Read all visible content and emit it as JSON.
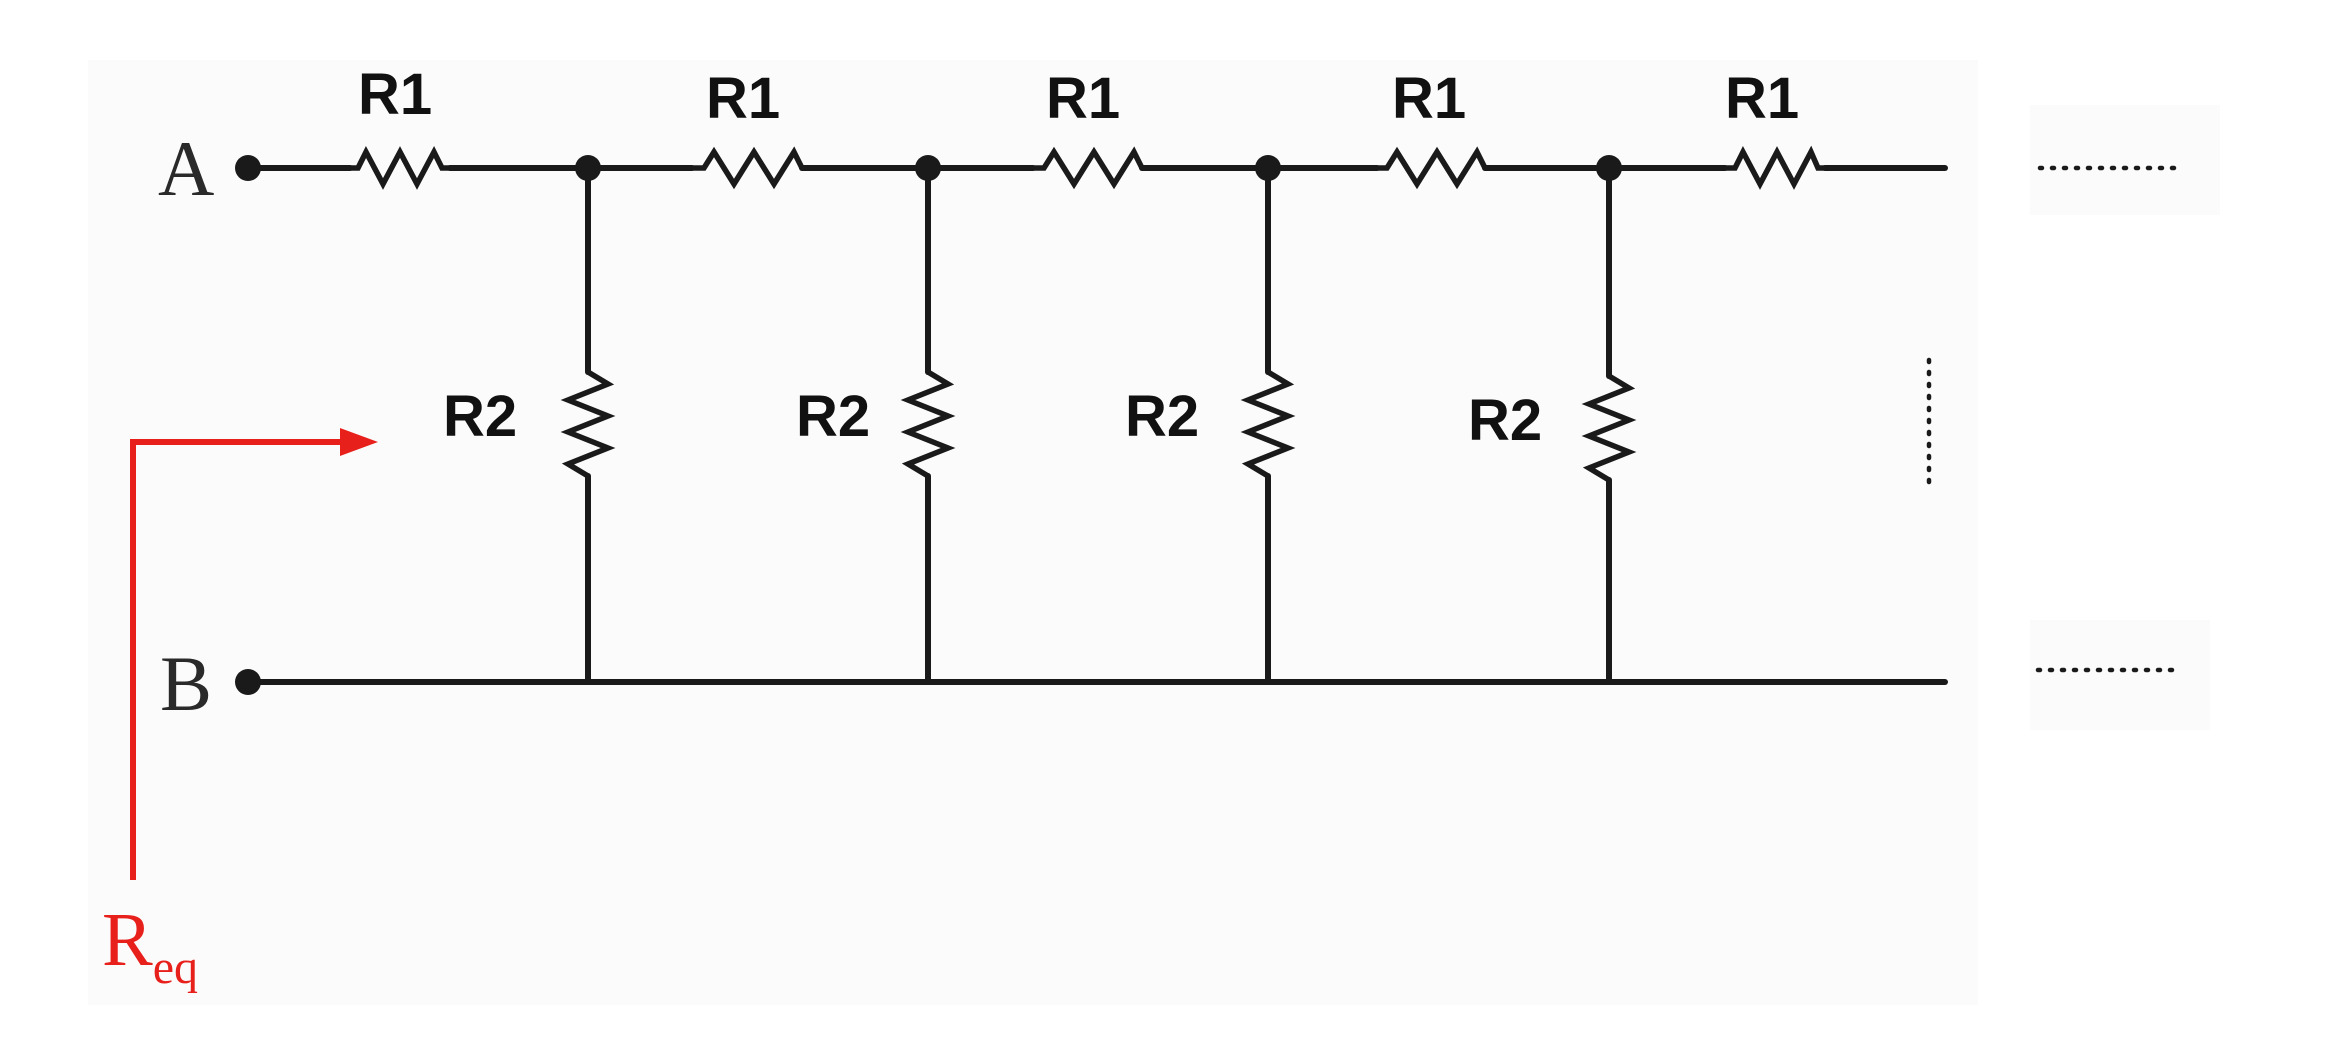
{
  "diagram": {
    "terminals": {
      "a": "A",
      "b": "B"
    },
    "series_resistors": [
      "R1",
      "R1",
      "R1",
      "R1",
      "R1"
    ],
    "shunt_resistors": [
      "R2",
      "R2",
      "R2",
      "R2"
    ],
    "equivalent": {
      "main": "R",
      "sub": "eq"
    },
    "continuation": "......",
    "colors": {
      "wire": "#1a1a1a",
      "arrow": "#e8201c"
    }
  }
}
